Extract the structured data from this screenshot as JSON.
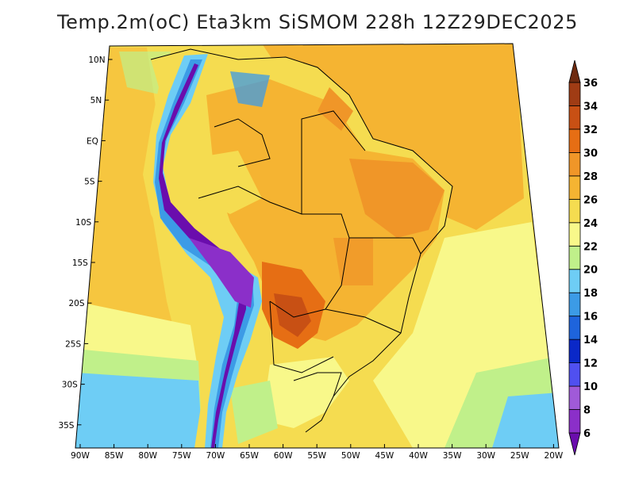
{
  "title": "Temp.2m(oC) Eta3km SiSMOM 228h 12Z29DEC2025",
  "map": {
    "variable": "Temp.2m",
    "units": "oC",
    "model": "Eta3km SiSMOM",
    "forecast_hour": "228h",
    "valid_time": "12Z29DEC2025",
    "lon_range": [
      -91,
      -20
    ],
    "lat_range": [
      -38,
      11
    ],
    "lon_ticks": [
      "90W",
      "85W",
      "80W",
      "75W",
      "70W",
      "65W",
      "60W",
      "55W",
      "50W",
      "45W",
      "40W",
      "35W",
      "30W",
      "25W",
      "20W"
    ],
    "lat_ticks": [
      "10N",
      "5N",
      "EQ",
      "5S",
      "10S",
      "15S",
      "20S",
      "25S",
      "30S",
      "35S"
    ]
  },
  "colorbar": {
    "labels": [
      "6",
      "8",
      "10",
      "12",
      "14",
      "16",
      "18",
      "20",
      "22",
      "24",
      "26",
      "28",
      "30",
      "32",
      "34",
      "36"
    ],
    "colors": [
      "#6a0dad",
      "#8b2fc9",
      "#a05ad8",
      "#5050f0",
      "#0a28c8",
      "#1e64dc",
      "#3c9be6",
      "#6ecdf5",
      "#c0f08a",
      "#f8f88a",
      "#f5dc50",
      "#f5b432",
      "#f09628",
      "#e66e14",
      "#c85014",
      "#a03c14",
      "#6e2a0f"
    ]
  },
  "colors": {
    "ocean_warm": "#f5b432",
    "ocean_mid": "#f5dc50",
    "ocean_cool": "#f8f88a",
    "land_hot": "#e66e14",
    "andes_cold": "#6a0dad"
  }
}
